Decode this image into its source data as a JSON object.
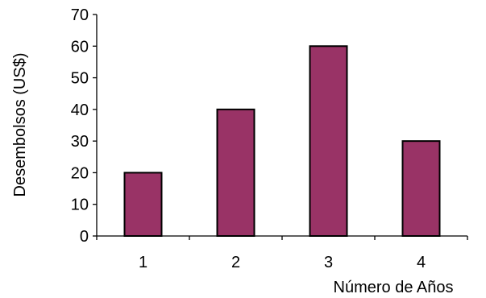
{
  "chart_data": {
    "type": "bar",
    "title": "",
    "xlabel": "Número de Años",
    "ylabel": "Desembolsos (US$)",
    "categories": [
      "1",
      "2",
      "3",
      "4"
    ],
    "values": [
      20,
      40,
      60,
      30
    ],
    "ylim": [
      0,
      70
    ],
    "yticks": [
      0,
      10,
      20,
      30,
      40,
      50,
      60,
      70
    ],
    "grid": false,
    "legend": "none",
    "bar_color": "#993366",
    "bar_edge_color": "#000000"
  }
}
